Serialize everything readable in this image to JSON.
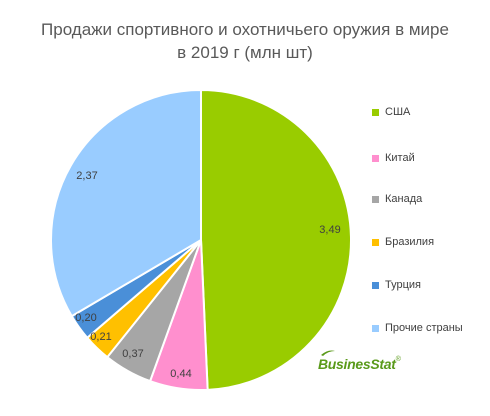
{
  "title": {
    "line1": "Продажи спортивного и охотничьего оружия в мире",
    "line2": "в 2019 г (млн шт)"
  },
  "chart_data": {
    "type": "pie",
    "title": "Продажи спортивного и охотничьего оружия в мире в 2019 г (млн шт)",
    "legend_position": "right",
    "slices": [
      {
        "label": "США",
        "value": 3.49,
        "display": "3,49",
        "color": "#99cc00"
      },
      {
        "label": "Китай",
        "value": 0.44,
        "display": "0,44",
        "color": "#ff8fce"
      },
      {
        "label": "Канада",
        "value": 0.37,
        "display": "0,37",
        "color": "#a6a6a6"
      },
      {
        "label": "Бразилия",
        "value": 0.21,
        "display": "0,21",
        "color": "#ffc000"
      },
      {
        "label": "Турция",
        "value": 0.2,
        "display": "0,20",
        "color": "#4a8fd8"
      },
      {
        "label": "Прочие страны",
        "value": 2.37,
        "display": "2,37",
        "color": "#99ccff"
      }
    ]
  },
  "logo": {
    "text": "BusinesStat",
    "mark": "®",
    "color": "#5a9a1a"
  }
}
